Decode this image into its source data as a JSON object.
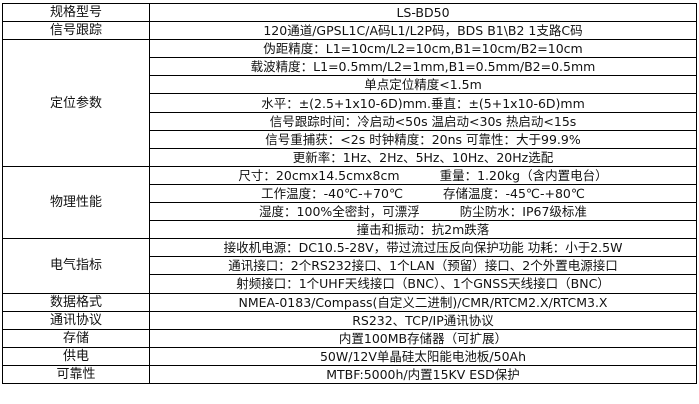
{
  "rows": [
    {
      "label": "规格型号",
      "values": [
        "LS-BD50"
      ]
    },
    {
      "label": "信号跟踪",
      "values": [
        "120通道/GPSL1C/A码L1/L2P码，BDS B1\\B2 1支路C码"
      ]
    },
    {
      "label": "定位参数",
      "values": [
        "伪距精度：L1=10cm/L2=10cm,B1=10cm/B2=10cm",
        "载波精度：L1=0.5mm/L2=1mm,B1=0.5mm/B2=0.5mm",
        "单点定位精度<1.5m",
        "水平：±(2.5+1x10-6D)mm.垂直：±(5+1x10-6D)mm",
        "信号跟踪时间：冷启动<50s 温启动<30s 热启动<15s",
        "信号重捕获：<2s  时钟精度：20ns  可靠性：大于99.9%",
        "更新率：1Hz、2Hz、5Hz、10Hz、20Hz选配"
      ]
    },
    {
      "label": "物理性能",
      "pairs": [
        [
          "尺寸：20cmx14.5cmx8cm",
          "重量：1.20kg（含内置电台）"
        ],
        [
          "工作温度：-40℃-+70℃",
          "存储温度：-45℃-+80℃"
        ],
        [
          "湿度：100%全密封，可漂浮",
          "防尘防水：IP67级标准"
        ],
        [
          "撞击和振动：抗2m跌落"
        ]
      ]
    },
    {
      "label": "电气指标",
      "values": [
        "接收机电源：DC10.5-28V，带过流过压反向保护功能  功耗：小于2.5W",
        "通讯接口：2个RS232接口、1个LAN（预留）接口、2个外置电源接口",
        "射频接口：1个UHF天线接口（BNC）、1个GNSS天线接口（BNC）"
      ]
    },
    {
      "label": "数据格式",
      "values": [
        "NMEA-0183/Compass(自定义二进制)/CMR/RTCM2.X/RTCM3.X"
      ]
    },
    {
      "label": "通讯协议",
      "values": [
        "RS232、TCP/IP通讯协议"
      ]
    },
    {
      "label": "存储",
      "values": [
        "内置100MB存储器（可扩展）"
      ]
    },
    {
      "label": "供电",
      "values": [
        "50W/12V单晶硅太阳能电池板/50Ah"
      ]
    },
    {
      "label": "可靠性",
      "values": [
        "MTBF:5000h/内置15KV ESD保护"
      ]
    }
  ]
}
